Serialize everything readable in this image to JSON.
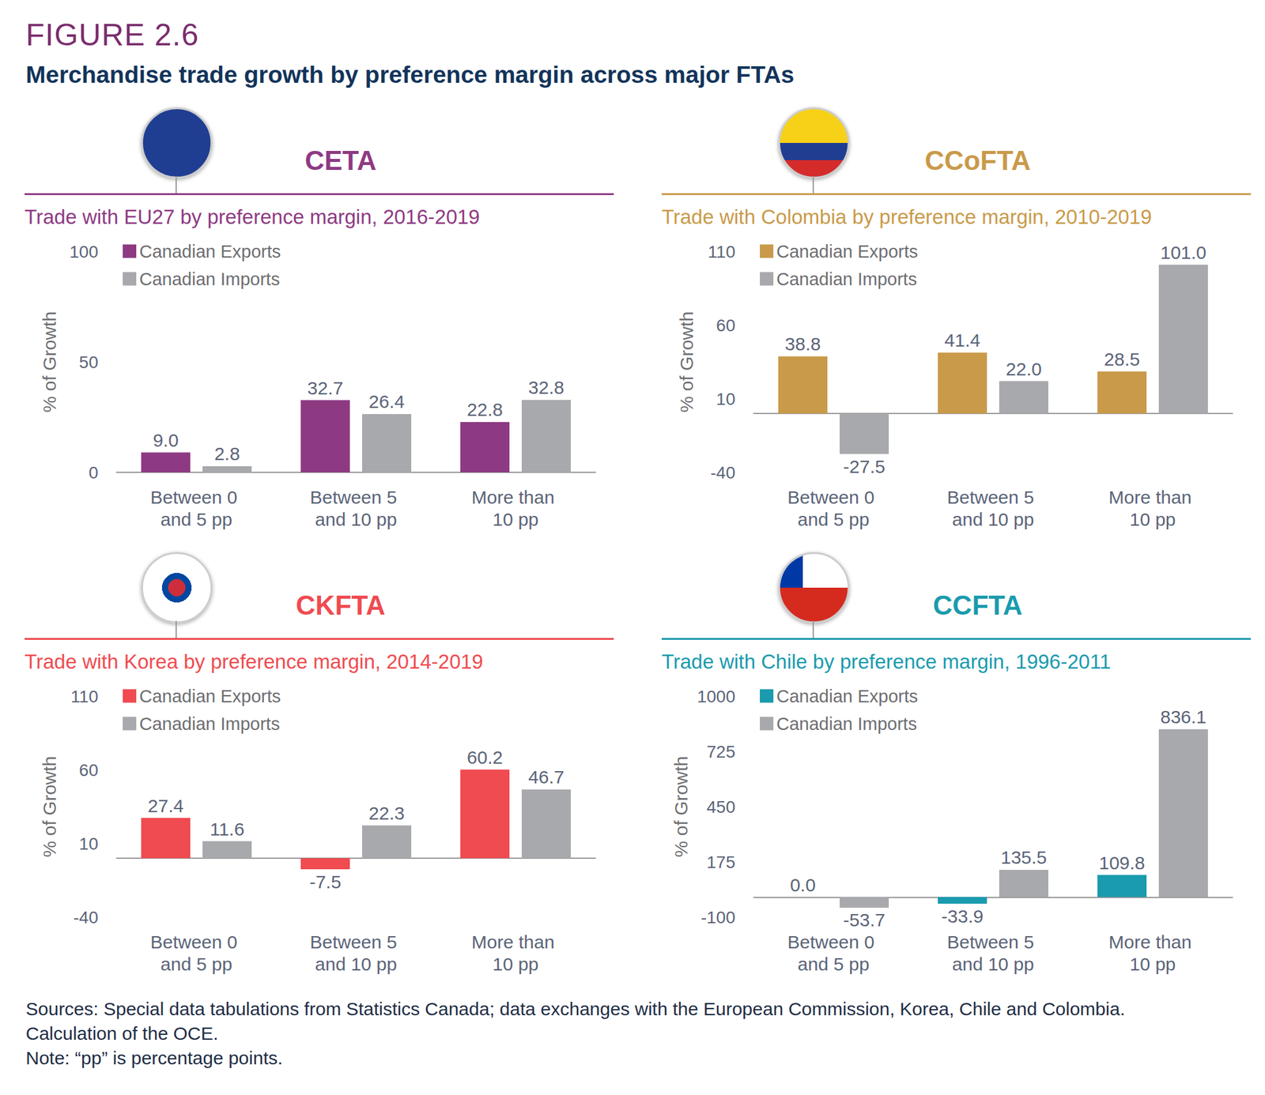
{
  "figure": "FIGURE 2.6",
  "title": "Merchandise trade growth by preference margin across major FTAs",
  "chart_data": [
    {
      "type": "bar",
      "title": "CETA",
      "subtitle": "Trade with EU27 by preference margin, 2016-2019",
      "color": "#8E3A83",
      "ylabel": "% of Growth",
      "categories": [
        "Between 0 and 5 pp",
        "Between 5 and 10 pp",
        "More than 10 pp"
      ],
      "series": [
        {
          "name": "Canadian Exports",
          "color": "#8E3A83",
          "values": [
            9.0,
            32.7,
            22.8
          ],
          "value_labels": [
            "9.0",
            "32.7",
            "22.8"
          ]
        },
        {
          "name": "Canadian Imports",
          "color": "#A7A9AC",
          "values": [
            2.8,
            26.4,
            32.8
          ],
          "value_labels": [
            "2.8",
            "26.4",
            "32.8"
          ]
        }
      ],
      "ylim": [
        0,
        100
      ],
      "yticks": [
        0,
        50,
        100
      ],
      "grid": false,
      "legend": "upper left",
      "data_labels": true
    },
    {
      "type": "bar",
      "title": "CCoFTA",
      "subtitle": "Trade with Colombia by preference margin, 2010-2019",
      "color": "#C99A4A",
      "ylabel": "% of Growth",
      "categories": [
        "Between 0 and 5 pp",
        "Between 5 and 10 pp",
        "More than 10 pp"
      ],
      "series": [
        {
          "name": "Canadian Exports",
          "color": "#C99A4A",
          "values": [
            38.8,
            41.4,
            28.5
          ],
          "value_labels": [
            "38.8",
            "41.4",
            "28.5"
          ]
        },
        {
          "name": "Canadian Imports",
          "color": "#A7A9AC",
          "values": [
            -27.5,
            22.0,
            101.0
          ],
          "value_labels": [
            "-27.5",
            "22.0",
            "101.0"
          ]
        }
      ],
      "ylim": [
        -40,
        110
      ],
      "yticks": [
        -40,
        10,
        60,
        110
      ],
      "grid": false,
      "legend": "upper left",
      "data_labels": true
    },
    {
      "type": "bar",
      "title": "CKFTA",
      "subtitle": "Trade with Korea by preference margin, 2014-2019",
      "color": "#EF4B50",
      "ylabel": "% of Growth",
      "categories": [
        "Between 0 and 5 pp",
        "Between 5 and 10 pp",
        "More than 10 pp"
      ],
      "series": [
        {
          "name": "Canadian Exports",
          "color": "#EF4B50",
          "values": [
            27.4,
            -7.5,
            60.2
          ],
          "value_labels": [
            "27.4",
            "-7.5",
            "60.2"
          ]
        },
        {
          "name": "Canadian Imports",
          "color": "#A7A9AC",
          "values": [
            11.6,
            22.3,
            46.7
          ],
          "value_labels": [
            "11.6",
            "22.3",
            "46.7"
          ]
        }
      ],
      "ylim": [
        -40,
        110
      ],
      "yticks": [
        -40,
        10,
        60,
        110
      ],
      "grid": false,
      "legend": "upper left",
      "data_labels": true
    },
    {
      "type": "bar",
      "title": "CCFTA",
      "subtitle": "Trade with Chile by preference margin, 1996-2011",
      "color": "#1A9BAE",
      "ylabel": "% of Growth",
      "categories": [
        "Between 0 and 5 pp",
        "Between 5 and 10 pp",
        "More than 10 pp"
      ],
      "series": [
        {
          "name": "Canadian Exports",
          "color": "#1A9BAE",
          "values": [
            0.0,
            -33.9,
            109.8
          ],
          "value_labels": [
            "0.0",
            "-33.9",
            "109.8"
          ]
        },
        {
          "name": "Canadian Imports",
          "color": "#A7A9AC",
          "values": [
            -53.7,
            135.5,
            836.1
          ],
          "value_labels": [
            "-53.7",
            "135.5",
            "836.1"
          ]
        }
      ],
      "ylim": [
        -100,
        1000
      ],
      "yticks": [
        -100,
        175,
        450,
        725,
        1000
      ],
      "grid": false,
      "legend": "upper left",
      "data_labels": true
    }
  ],
  "sources": "Sources: Special data tabulations from Statistics Canada; data exchanges with the European Commission, Korea, Chile and Colombia. Calculation of the OCE.",
  "note": "Note: “pp” is percentage points."
}
